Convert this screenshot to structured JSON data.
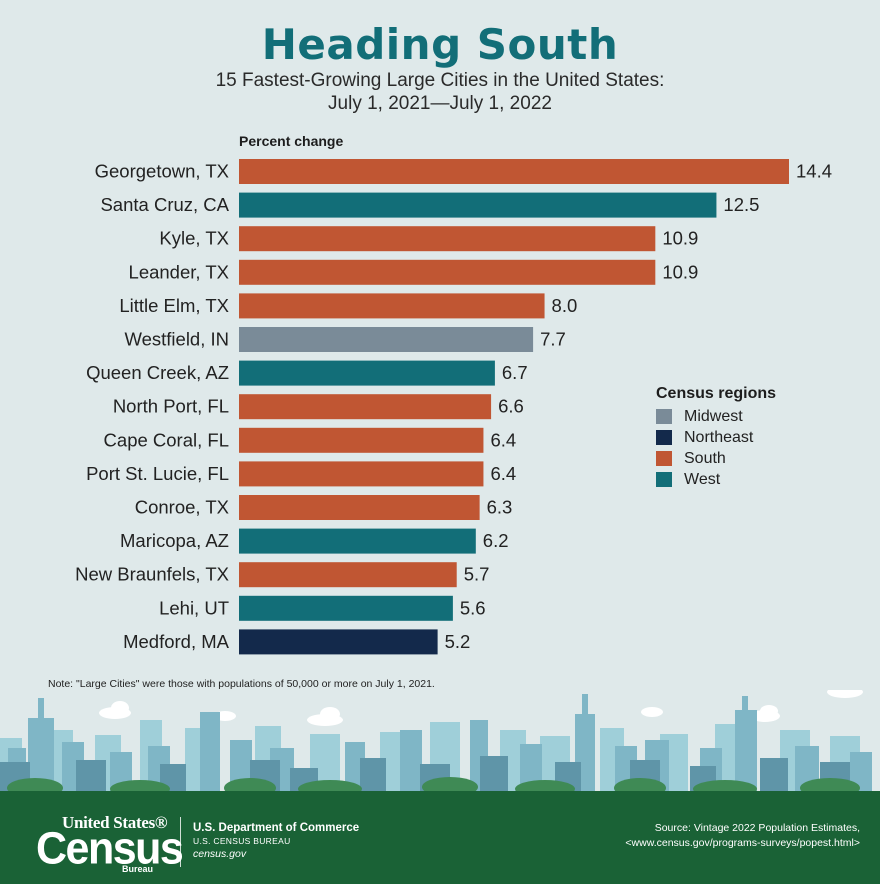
{
  "header": {
    "title": "Heading South",
    "subtitle_line1": "15 Fastest-Growing Large Cities in the United States:",
    "subtitle_line2": "July 1, 2021—July 1, 2022"
  },
  "chart_data": {
    "type": "bar",
    "orientation": "horizontal",
    "value_axis_label": "Percent change",
    "categories": [
      "Georgetown, TX",
      "Santa Cruz, CA",
      "Kyle, TX",
      "Leander, TX",
      "Little Elm, TX",
      "Westfield, IN",
      "Queen Creek, AZ",
      "North Port, FL",
      "Cape Coral, FL",
      "Port St. Lucie, FL",
      "Conroe, TX",
      "Maricopa, AZ",
      "New Braunfels, TX",
      "Lehi, UT",
      "Medford, MA"
    ],
    "values": [
      14.4,
      12.5,
      10.9,
      10.9,
      8.0,
      7.7,
      6.7,
      6.6,
      6.4,
      6.4,
      6.3,
      6.2,
      5.7,
      5.6,
      5.2
    ],
    "value_labels": [
      "14.4",
      "12.5",
      "10.9",
      "10.9",
      "8.0",
      "7.7",
      "6.7",
      "6.6",
      "6.4",
      "6.4",
      "6.3",
      "6.2",
      "5.7",
      "5.6",
      "5.2"
    ],
    "regions": [
      "South",
      "West",
      "South",
      "South",
      "South",
      "Midwest",
      "West",
      "South",
      "South",
      "South",
      "South",
      "West",
      "South",
      "West",
      "Northeast"
    ],
    "xlim": [
      0,
      14.4
    ],
    "grid": false,
    "legend": {
      "title": "Census regions",
      "placement": "right",
      "entries": [
        {
          "name": "Midwest",
          "color": "#7a8b98"
        },
        {
          "name": "Northeast",
          "color": "#13294b"
        },
        {
          "name": "South",
          "color": "#c05633"
        },
        {
          "name": "West",
          "color": "#126e78"
        }
      ]
    }
  },
  "note": "Note: \"Large Cities\" were those with populations of 50,000 or more on July 1, 2021.",
  "footer": {
    "logo_top": "United States®",
    "logo_main": "Census",
    "logo_bureau": "Bureau",
    "dept_line1": "U.S. Department of Commerce",
    "dept_line2": "U.S. CENSUS BUREAU",
    "dept_line3": "census.gov",
    "source_line1": "Source: Vintage 2022 Population Estimates,",
    "source_line2": "<www.census.gov/programs-surveys/popest.html>"
  },
  "colors": {
    "title": "#126e78",
    "background": "#dfe9ea",
    "footer": "#1a6236"
  }
}
